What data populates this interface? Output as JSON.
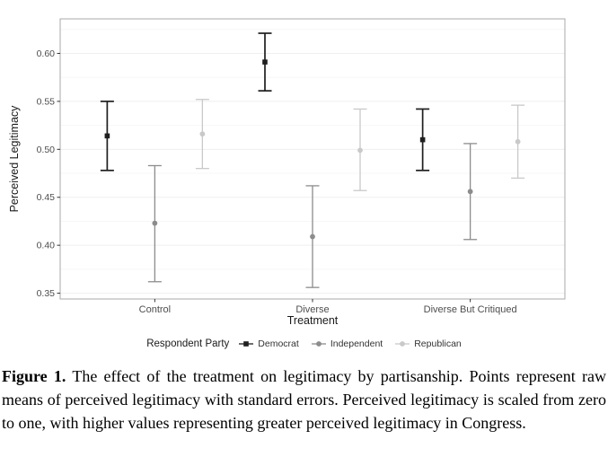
{
  "figure": {
    "caption_label": "Figure 1.",
    "caption_text": "The effect of the treatment on legitimacy by partisanship. Points represent raw means of perceived legitimacy with standard errors. Perceived legitimacy is scaled from zero to one, with higher values representing greater perceived legitimacy in Congress."
  },
  "chart_data": {
    "type": "pointrange",
    "title": "",
    "xlabel": "Treatment",
    "ylabel": "Perceived Legitimacy",
    "legend_title": "Respondent Party",
    "legend_position": "bottom",
    "grid": "major+minor horizontal",
    "categories": [
      "Control",
      "Diverse",
      "Diverse But Critiqued"
    ],
    "yticks": [
      0.35,
      0.4,
      0.45,
      0.5,
      0.55,
      0.6
    ],
    "ylim": [
      0.344,
      0.636
    ],
    "series": [
      {
        "name": "Democrat",
        "color": "#1f1f1f",
        "shape": "square",
        "means": [
          0.514,
          0.591,
          0.51
        ],
        "lower": [
          0.478,
          0.561,
          0.478
        ],
        "upper": [
          0.55,
          0.621,
          0.542
        ]
      },
      {
        "name": "Independent",
        "color": "#8c8c8c",
        "shape": "circle",
        "means": [
          0.423,
          0.409,
          0.456
        ],
        "lower": [
          0.362,
          0.356,
          0.406
        ],
        "upper": [
          0.483,
          0.462,
          0.506
        ]
      },
      {
        "name": "Republican",
        "color": "#c9c9c9",
        "shape": "circle",
        "means": [
          0.516,
          0.499,
          0.508
        ],
        "lower": [
          0.48,
          0.457,
          0.47
        ],
        "upper": [
          0.552,
          0.542,
          0.546
        ]
      }
    ]
  },
  "colors": {
    "panel_border": "#a8a8a8",
    "grid_major": "#efefef",
    "grid_minor": "#f7f7f7",
    "tick_mark": "#333333",
    "tick_label": "#4d4d4d",
    "axis_title": "#1a1a1a",
    "legend_text": "#333333"
  }
}
